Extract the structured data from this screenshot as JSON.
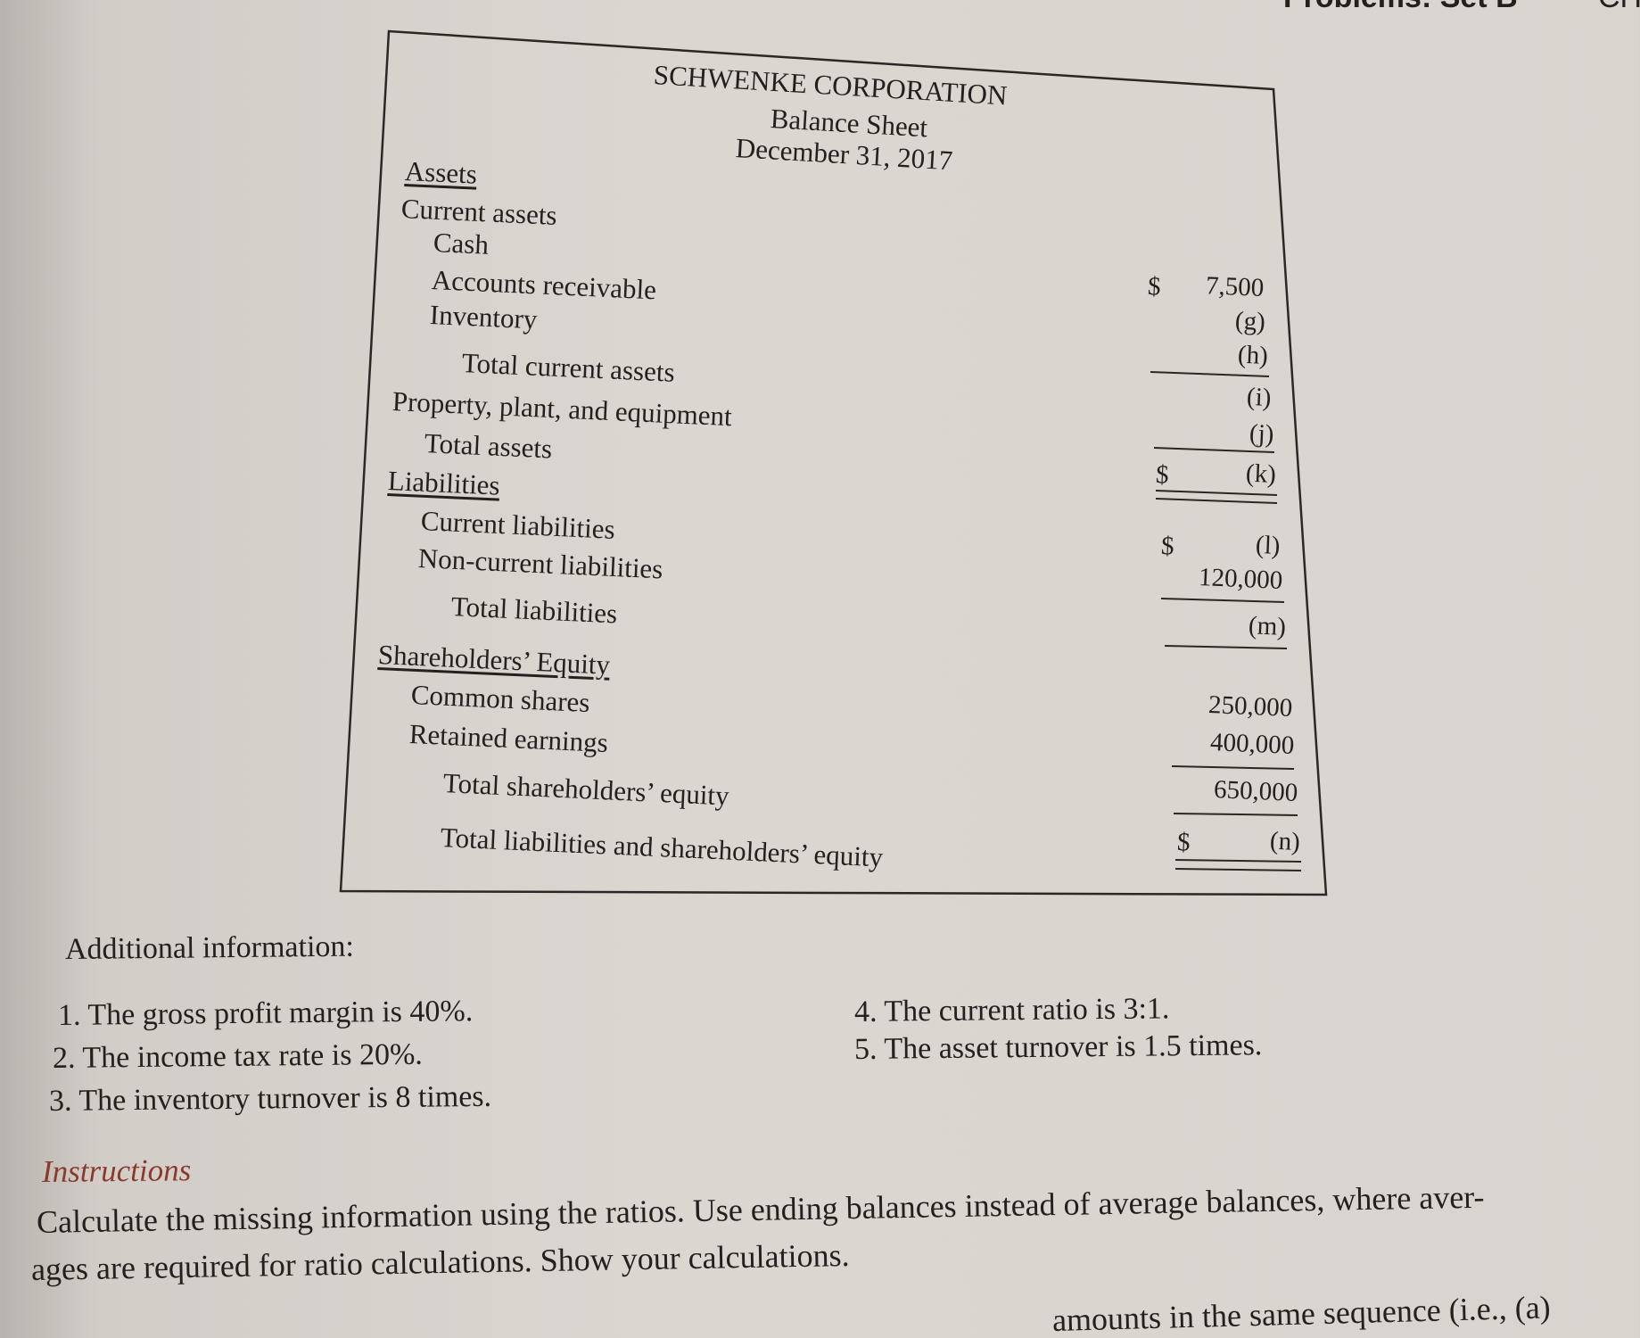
{
  "page_header": {
    "section": "Problems: Set B",
    "chapter": "CH"
  },
  "balance_sheet": {
    "company": "SCHWENKE CORPORATION",
    "title": "Balance Sheet",
    "date": "December 31, 2017",
    "assets_heading": "Assets",
    "current_assets": "Current assets",
    "cash": {
      "label": "Cash",
      "value": "7,500",
      "currency": "$"
    },
    "accounts_receivable": {
      "label": "Accounts receivable",
      "value": "(g)"
    },
    "inventory": {
      "label": "Inventory",
      "value": "(h)"
    },
    "total_current_assets": {
      "label": "Total current assets",
      "value": "(i)"
    },
    "ppe": {
      "label": "Property, plant, and equipment",
      "value": "(j)"
    },
    "total_assets": {
      "label": "Total assets",
      "value": "(k)",
      "currency": "$"
    },
    "liabilities_heading": "Liabilities",
    "current_liabilities": {
      "label": "Current liabilities",
      "value": "(l)",
      "currency": "$"
    },
    "noncurrent_liabilities": {
      "label": "Non-current liabilities",
      "value": "120,000"
    },
    "total_liabilities": {
      "label": "Total liabilities",
      "value": "(m)"
    },
    "equity_heading": "Shareholders’ Equity",
    "common_shares": {
      "label": "Common shares",
      "value": "250,000"
    },
    "retained_earnings": {
      "label": "Retained earnings",
      "value": "400,000"
    },
    "total_equity": {
      "label": "Total shareholders’ equity",
      "value": "650,000"
    },
    "total_liab_equity": {
      "label": "Total liabilities and shareholders’ equity",
      "value": "(n)",
      "currency": "$"
    }
  },
  "additional": {
    "heading": "Additional information:",
    "items": [
      "1. The gross profit margin is 40%.",
      "2. The income tax rate is 20%.",
      "3. The inventory turnover is 8 times.",
      "4. The current ratio is 3:1.",
      "5. The asset turnover is 1.5 times."
    ]
  },
  "instructions": {
    "heading": "Instructions",
    "line1": "Calculate the missing information using the ratios. Use ending balances instead of average balances, where aver-",
    "line2": "ages are required for ratio calculations. Show your calculations.",
    "line3_partial": "amounts in the same sequence (i.e., (a)"
  }
}
